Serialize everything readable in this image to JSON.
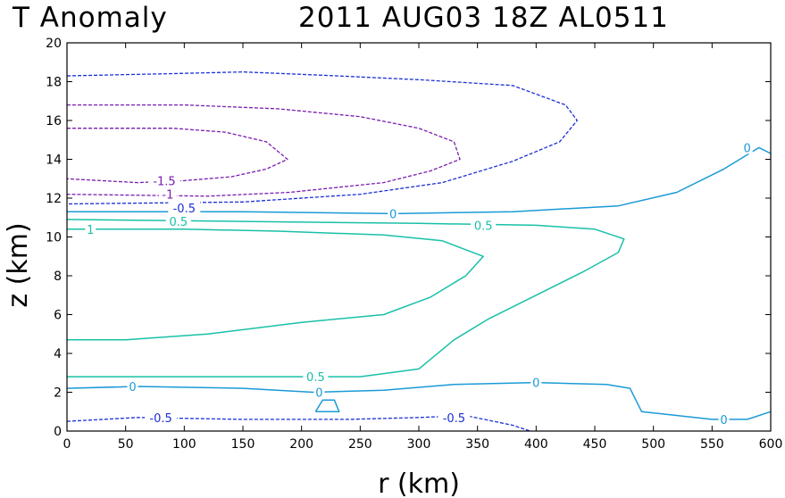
{
  "chart_data": {
    "type": "contour",
    "title_left": "T Anomaly",
    "title_right": "2011 AUG03 18Z  AL0511",
    "xlabel": "r (km)",
    "ylabel": "z (km)",
    "xlim": [
      0,
      600
    ],
    "ylim": [
      0,
      20
    ],
    "xticks": [
      "0",
      "50",
      "100",
      "150",
      "200",
      "250",
      "300",
      "350",
      "400",
      "450",
      "500",
      "550",
      "600"
    ],
    "yticks": [
      "0",
      "2",
      "4",
      "6",
      "8",
      "10",
      "12",
      "14",
      "16",
      "18",
      "20"
    ],
    "contours": [
      {
        "level": "-0.5",
        "color": "#1a2fd6",
        "dashed": true,
        "points": [
          [
            0,
            18.3
          ],
          [
            80,
            18.4
          ],
          [
            150,
            18.5
          ],
          [
            230,
            18.3
          ],
          [
            300,
            18.1
          ],
          [
            380,
            17.8
          ],
          [
            425,
            16.8
          ],
          [
            435,
            16.0
          ],
          [
            420,
            14.9
          ],
          [
            380,
            13.9
          ],
          [
            320,
            12.8
          ],
          [
            250,
            12.2
          ],
          [
            150,
            11.8
          ],
          [
            0,
            11.7
          ]
        ]
      },
      {
        "level": "-1",
        "color": "#7a1cb0",
        "dashed": true,
        "points": [
          [
            0,
            16.8
          ],
          [
            100,
            16.8
          ],
          [
            180,
            16.6
          ],
          [
            250,
            16.2
          ],
          [
            300,
            15.6
          ],
          [
            330,
            14.9
          ],
          [
            335,
            14.0
          ],
          [
            310,
            13.4
          ],
          [
            270,
            12.8
          ],
          [
            190,
            12.3
          ],
          [
            120,
            12.1
          ],
          [
            0,
            12.2
          ]
        ]
      },
      {
        "level": "-1.5",
        "color": "#7a1cb0",
        "dashed": true,
        "points": [
          [
            0,
            15.6
          ],
          [
            90,
            15.6
          ],
          [
            135,
            15.4
          ],
          [
            170,
            14.9
          ],
          [
            188,
            14.0
          ],
          [
            170,
            13.5
          ],
          [
            140,
            13.1
          ],
          [
            100,
            12.9
          ],
          [
            60,
            12.8
          ],
          [
            0,
            13.0
          ]
        ]
      },
      {
        "level": "0",
        "color": "#1a9ad6",
        "dashed": false,
        "points": [
          [
            0,
            11.3
          ],
          [
            150,
            11.3
          ],
          [
            280,
            11.2
          ],
          [
            380,
            11.3
          ],
          [
            470,
            11.6
          ],
          [
            520,
            12.3
          ],
          [
            560,
            13.5
          ],
          [
            590,
            14.6
          ],
          [
            600,
            14.3
          ]
        ]
      },
      {
        "level": "0.5",
        "color": "#19c0a8",
        "dashed": false,
        "points": [
          [
            0,
            10.9
          ],
          [
            150,
            10.8
          ],
          [
            300,
            10.7
          ],
          [
            400,
            10.6
          ],
          [
            450,
            10.4
          ],
          [
            475,
            9.9
          ],
          [
            470,
            9.2
          ],
          [
            440,
            8.2
          ],
          [
            400,
            7.0
          ],
          [
            360,
            5.8
          ],
          [
            330,
            4.7
          ],
          [
            300,
            3.2
          ],
          [
            250,
            2.8
          ],
          [
            150,
            2.8
          ],
          [
            0,
            2.8
          ]
        ]
      },
      {
        "level": "1",
        "color": "#19c0a8",
        "dashed": false,
        "points": [
          [
            0,
            10.4
          ],
          [
            100,
            10.4
          ],
          [
            180,
            10.3
          ],
          [
            270,
            10.1
          ],
          [
            320,
            9.8
          ],
          [
            355,
            9.0
          ],
          [
            340,
            8.0
          ],
          [
            310,
            6.9
          ],
          [
            270,
            6.0
          ],
          [
            200,
            5.6
          ],
          [
            120,
            5.0
          ],
          [
            50,
            4.7
          ],
          [
            0,
            4.7
          ]
        ]
      },
      {
        "level": "0",
        "color": "#1a9ad6",
        "dashed": false,
        "points": [
          [
            0,
            2.2
          ],
          [
            60,
            2.3
          ],
          [
            150,
            2.2
          ],
          [
            210,
            2.0
          ],
          [
            270,
            2.1
          ],
          [
            330,
            2.4
          ],
          [
            400,
            2.5
          ],
          [
            460,
            2.4
          ],
          [
            480,
            2.2
          ],
          [
            490,
            1.0
          ],
          [
            550,
            0.6
          ],
          [
            580,
            0.6
          ],
          [
            600,
            1.0
          ]
        ]
      },
      {
        "level": "0",
        "color": "#1a9ad6",
        "dashed": false,
        "points": [
          [
            212,
            1.0
          ],
          [
            218,
            1.6
          ],
          [
            228,
            1.6
          ],
          [
            232,
            1.0
          ],
          [
            212,
            1.0
          ]
        ]
      },
      {
        "level": "-0.5",
        "color": "#1a2fd6",
        "dashed": true,
        "points": [
          [
            0,
            0.5
          ],
          [
            60,
            0.7
          ],
          [
            150,
            0.6
          ],
          [
            240,
            0.6
          ],
          [
            300,
            0.7
          ],
          [
            340,
            0.8
          ],
          [
            380,
            0.3
          ],
          [
            395,
            0.0
          ]
        ]
      }
    ],
    "labels": [
      {
        "text": "-1.5",
        "x": 83,
        "y": 12.9,
        "color": "#7a1cb0"
      },
      {
        "text": "-1",
        "x": 86,
        "y": 12.2,
        "color": "#7a1cb0"
      },
      {
        "text": "-0.5",
        "x": 100,
        "y": 11.5,
        "color": "#1a2fd6"
      },
      {
        "text": "0",
        "x": 278,
        "y": 11.2,
        "color": "#1a9ad6"
      },
      {
        "text": "0.5",
        "x": 95,
        "y": 10.8,
        "color": "#19c0a8"
      },
      {
        "text": "0.5",
        "x": 355,
        "y": 10.6,
        "color": "#19c0a8"
      },
      {
        "text": "1",
        "x": 20,
        "y": 10.4,
        "color": "#19c0a8"
      },
      {
        "text": "0",
        "x": 580,
        "y": 14.6,
        "color": "#1a9ad6"
      },
      {
        "text": "0.5",
        "x": 212,
        "y": 2.8,
        "color": "#19c0a8"
      },
      {
        "text": "0",
        "x": 56,
        "y": 2.3,
        "color": "#1a9ad6"
      },
      {
        "text": "0",
        "x": 215,
        "y": 2.0,
        "color": "#1a9ad6"
      },
      {
        "text": "0",
        "x": 400,
        "y": 2.5,
        "color": "#1a9ad6"
      },
      {
        "text": "0",
        "x": 560,
        "y": 0.6,
        "color": "#1a9ad6"
      },
      {
        "text": "-0.5",
        "x": 80,
        "y": 0.7,
        "color": "#1a2fd6"
      },
      {
        "text": "-0.5",
        "x": 330,
        "y": 0.7,
        "color": "#1a2fd6"
      }
    ]
  }
}
